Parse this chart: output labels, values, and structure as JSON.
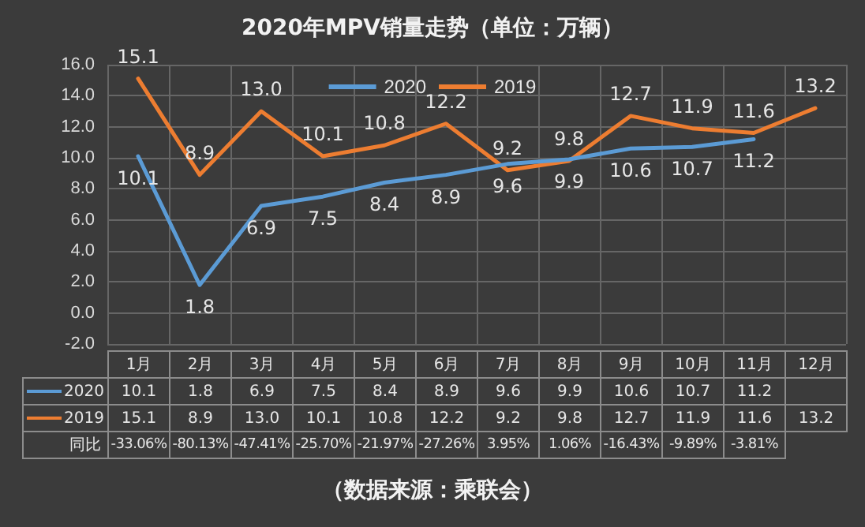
{
  "chart_data": {
    "type": "line",
    "title": "2020年MPV销量走势（单位：万辆）",
    "categories": [
      "1月",
      "2月",
      "3月",
      "4月",
      "5月",
      "6月",
      "7月",
      "8月",
      "9月",
      "10月",
      "11月",
      "12月"
    ],
    "series": [
      {
        "name": "2020",
        "color": "#5b9bd5",
        "values": [
          10.1,
          1.8,
          6.9,
          7.5,
          8.4,
          8.9,
          9.6,
          9.9,
          10.6,
          10.7,
          11.2,
          null
        ],
        "value_labels": [
          "10.1",
          "1.8",
          "6.9",
          "7.5",
          "8.4",
          "8.9",
          "9.6",
          "9.9",
          "10.6",
          "10.7",
          "11.2",
          null
        ]
      },
      {
        "name": "2019",
        "color": "#ed7d31",
        "values": [
          15.1,
          8.9,
          13.0,
          10.1,
          10.8,
          12.2,
          9.2,
          9.8,
          12.7,
          11.9,
          11.6,
          13.2
        ],
        "value_labels": [
          "15.1",
          "8.9",
          "13.0",
          "10.1",
          "10.8",
          "12.2",
          "9.2",
          "9.8",
          "12.7",
          "11.9",
          "11.6",
          "13.2"
        ]
      }
    ],
    "ylim": [
      -2,
      16
    ],
    "yticks": [
      {
        "value": -2,
        "label": "-2.0"
      },
      {
        "value": 0,
        "label": "0.0"
      },
      {
        "value": 2,
        "label": "2.0"
      },
      {
        "value": 4,
        "label": "4.0"
      },
      {
        "value": 6,
        "label": "6.0"
      },
      {
        "value": 8,
        "label": "8.0"
      },
      {
        "value": 10,
        "label": "10.0"
      },
      {
        "value": 12,
        "label": "12.0"
      },
      {
        "value": 14,
        "label": "14.0"
      },
      {
        "value": 16,
        "label": "16.0"
      }
    ],
    "grid": true,
    "legend": "top",
    "marker": "none",
    "line_style": "solid",
    "annotations": [
      "同比",
      "-33.06%",
      "-80.13%",
      "-47.41%",
      "-25.70%",
      "-21.97%",
      "-27.26%",
      "3.95%",
      "1.06%",
      "-16.43%",
      "-9.89%",
      "-3.81%",
      "（数据来源：乘联会）"
    ]
  }
}
